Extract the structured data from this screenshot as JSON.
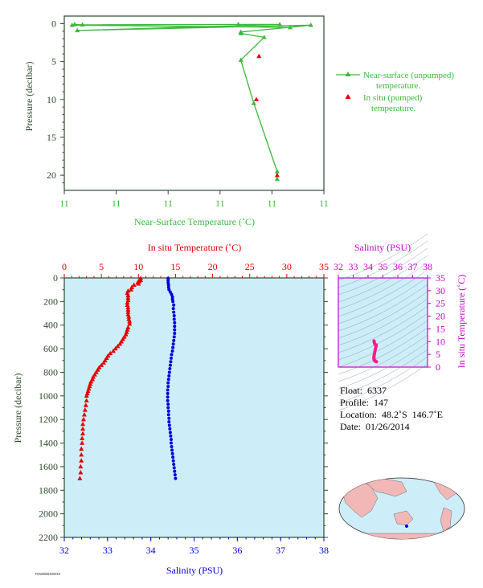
{
  "top_chart": {
    "xlabel": "Near-Surface Temperature (˚C)",
    "ylabel": "Pressure (decibar)",
    "x_tick_labels": [
      "11",
      "11",
      "11",
      "11",
      "11",
      "11"
    ],
    "y_ticks": [
      0,
      5,
      10,
      15,
      20
    ],
    "legend": {
      "unpumped_line1": "Near-surface (unpumped)",
      "unpumped_line2": "temperature.",
      "pumped_line1": "In situ (pumped)",
      "pumped_line2": "temperature."
    },
    "colors": {
      "unpumped": "#3cb83c",
      "pumped": "#e00000",
      "axis": "#2d4a2d"
    }
  },
  "main_chart": {
    "temp_label": "In situ Temperature (˚C)",
    "salinity_label": "Salinity (PSU)",
    "ylabel": "Pressure (decibar)",
    "temp_ticks": [
      0,
      5,
      10,
      15,
      20,
      25,
      30,
      35
    ],
    "salinity_ticks": [
      32,
      33,
      34,
      35,
      36,
      37,
      38
    ],
    "pressure_ticks": [
      0,
      200,
      400,
      600,
      800,
      1000,
      1200,
      1400,
      1600,
      1800,
      2000,
      2200
    ],
    "colors": {
      "temp": "#e00000",
      "salinity": "#0000e0",
      "background": "#cdeef8"
    }
  },
  "ts_chart": {
    "title": "Salinity (PSU)",
    "ylabel": "In situ Temperature (˚C)",
    "x_ticks": [
      32,
      33,
      34,
      35,
      36,
      37,
      38
    ],
    "y_ticks": [
      0,
      5,
      10,
      15,
      20,
      25,
      30,
      35
    ],
    "color": "#cc00cc"
  },
  "info": {
    "float": "Float:  6337",
    "profile": "Profile:  147",
    "location": "Location:  48.2˚S  146.7˚E",
    "date": "Date:  01/26/2014"
  },
  "footer_id": "F0X00000X000X0",
  "chart_data": [
    {
      "type": "line",
      "name": "near-surface",
      "xlabel": "Near-Surface Temperature (˚C)",
      "ylabel": "Pressure (decibar)",
      "ylim": [
        22,
        -1
      ],
      "series": [
        {
          "name": "Near-surface (unpumped) temperature.",
          "points": [
            [
              10.87,
              0.5
            ],
            [
              10.03,
              0.2
            ],
            [
              10.04,
              0.1
            ],
            [
              10.07,
              0.15
            ],
            [
              10.67,
              0.1
            ],
            [
              10.83,
              0.1
            ],
            [
              10.05,
              0.9
            ],
            [
              10.95,
              0.2
            ],
            [
              10.68,
              1.1
            ],
            [
              10.68,
              1.3
            ],
            [
              10.77,
              1.8
            ],
            [
              10.68,
              4.8
            ],
            [
              10.73,
              10.5
            ],
            [
              10.82,
              19.5
            ],
            [
              10.82,
              20.5
            ]
          ]
        },
        {
          "name": "In situ (pumped) temperature.",
          "points": [
            [
              10.75,
              4.3
            ],
            [
              10.74,
              10.0
            ],
            [
              10.82,
              20.0
            ]
          ]
        }
      ]
    },
    {
      "type": "line",
      "name": "temperature-profile",
      "xlabel": "In situ Temperature (˚C)",
      "ylabel": "Pressure (decibar)",
      "xlim": [
        0,
        35
      ],
      "ylim": [
        2200,
        0
      ],
      "series": [
        {
          "name": "In situ Temperature",
          "points": [
            [
              10.3,
              4
            ],
            [
              10.2,
              10
            ],
            [
              10.3,
              20
            ],
            [
              10.1,
              30
            ],
            [
              9.9,
              40
            ],
            [
              10.0,
              50
            ],
            [
              9.4,
              60
            ],
            [
              9.1,
              80
            ],
            [
              9.0,
              100
            ],
            [
              8.6,
              110
            ],
            [
              8.5,
              130
            ],
            [
              8.6,
              150
            ],
            [
              8.6,
              170
            ],
            [
              8.6,
              190
            ],
            [
              8.5,
              210
            ],
            [
              8.5,
              230
            ],
            [
              8.6,
              250
            ],
            [
              8.6,
              270
            ],
            [
              8.6,
              290
            ],
            [
              8.6,
              310
            ],
            [
              8.7,
              330
            ],
            [
              8.7,
              350
            ],
            [
              8.8,
              370
            ],
            [
              8.8,
              390
            ],
            [
              8.6,
              420
            ],
            [
              8.5,
              440
            ],
            [
              8.4,
              460
            ],
            [
              8.3,
              480
            ],
            [
              8.1,
              500
            ],
            [
              7.9,
              520
            ],
            [
              7.7,
              540
            ],
            [
              7.5,
              560
            ],
            [
              7.2,
              580
            ],
            [
              6.9,
              600
            ],
            [
              6.6,
              620
            ],
            [
              6.2,
              640
            ],
            [
              5.9,
              660
            ],
            [
              5.7,
              680
            ],
            [
              5.5,
              700
            ],
            [
              5.3,
              720
            ],
            [
              5.0,
              740
            ],
            [
              4.7,
              760
            ],
            [
              4.5,
              780
            ],
            [
              4.3,
              800
            ],
            [
              4.1,
              820
            ],
            [
              3.9,
              840
            ],
            [
              3.8,
              860
            ],
            [
              3.6,
              880
            ],
            [
              3.5,
              900
            ],
            [
              3.4,
              920
            ],
            [
              3.3,
              940
            ],
            [
              3.2,
              960
            ],
            [
              3.1,
              980
            ],
            [
              3.0,
              1000
            ],
            [
              3.0,
              1040
            ],
            [
              2.9,
              1080
            ],
            [
              2.8,
              1120
            ],
            [
              2.7,
              1160
            ],
            [
              2.6,
              1200
            ],
            [
              2.5,
              1240
            ],
            [
              2.5,
              1280
            ],
            [
              2.5,
              1320
            ],
            [
              2.4,
              1360
            ],
            [
              2.4,
              1400
            ],
            [
              2.3,
              1450
            ],
            [
              2.3,
              1500
            ],
            [
              2.3,
              1550
            ],
            [
              2.2,
              1600
            ],
            [
              2.2,
              1650
            ],
            [
              2.1,
              1700
            ]
          ]
        }
      ]
    },
    {
      "type": "scatter",
      "name": "salinity-profile",
      "xlabel": "Salinity (PSU)",
      "ylabel": "Pressure (decibar)",
      "xlim": [
        32,
        38
      ],
      "ylim": [
        2200,
        0
      ],
      "series": [
        {
          "name": "Salinity",
          "points": [
            [
              34.4,
              4
            ],
            [
              34.4,
              20
            ],
            [
              34.4,
              40
            ],
            [
              34.41,
              60
            ],
            [
              34.41,
              80
            ],
            [
              34.42,
              100
            ],
            [
              34.45,
              120
            ],
            [
              34.48,
              140
            ],
            [
              34.5,
              160
            ],
            [
              34.5,
              180
            ],
            [
              34.51,
              200
            ],
            [
              34.53,
              230
            ],
            [
              34.52,
              260
            ],
            [
              34.53,
              290
            ],
            [
              34.54,
              320
            ],
            [
              34.54,
              350
            ],
            [
              34.55,
              380
            ],
            [
              34.55,
              410
            ],
            [
              34.55,
              440
            ],
            [
              34.55,
              470
            ],
            [
              34.54,
              500
            ],
            [
              34.53,
              530
            ],
            [
              34.52,
              560
            ],
            [
              34.51,
              590
            ],
            [
              34.5,
              620
            ],
            [
              34.48,
              650
            ],
            [
              34.47,
              680
            ],
            [
              34.46,
              710
            ],
            [
              34.45,
              740
            ],
            [
              34.44,
              770
            ],
            [
              34.43,
              800
            ],
            [
              34.42,
              830
            ],
            [
              34.41,
              860
            ],
            [
              34.4,
              890
            ],
            [
              34.4,
              920
            ],
            [
              34.39,
              950
            ],
            [
              34.39,
              980
            ],
            [
              34.39,
              1010
            ],
            [
              34.39,
              1040
            ],
            [
              34.4,
              1070
            ],
            [
              34.4,
              1100
            ],
            [
              34.41,
              1130
            ],
            [
              34.41,
              1160
            ],
            [
              34.42,
              1190
            ],
            [
              34.42,
              1220
            ],
            [
              34.43,
              1250
            ],
            [
              34.44,
              1280
            ],
            [
              34.45,
              1310
            ],
            [
              34.46,
              1340
            ],
            [
              34.47,
              1370
            ],
            [
              34.47,
              1400
            ],
            [
              34.48,
              1430
            ],
            [
              34.49,
              1460
            ],
            [
              34.5,
              1490
            ],
            [
              34.51,
              1520
            ],
            [
              34.52,
              1550
            ],
            [
              34.53,
              1580
            ],
            [
              34.54,
              1610
            ],
            [
              34.55,
              1640
            ],
            [
              34.56,
              1670
            ],
            [
              34.57,
              1700
            ]
          ]
        }
      ]
    },
    {
      "type": "scatter",
      "name": "ts-diagram",
      "xlabel": "Salinity (PSU)",
      "ylabel": "In situ Temperature (˚C)",
      "xlim": [
        32,
        38
      ],
      "ylim": [
        0,
        35
      ],
      "series": [
        {
          "name": "T-S",
          "points": [
            [
              34.4,
              10.3
            ],
            [
              34.41,
              10.0
            ],
            [
              34.42,
              9.6
            ],
            [
              34.45,
              9.1
            ],
            [
              34.5,
              8.8
            ],
            [
              34.52,
              8.6
            ],
            [
              34.53,
              8.6
            ],
            [
              34.55,
              8.7
            ],
            [
              34.55,
              8.5
            ],
            [
              34.54,
              8.2
            ],
            [
              34.52,
              7.8
            ],
            [
              34.5,
              7.3
            ],
            [
              34.48,
              6.8
            ],
            [
              34.46,
              6.2
            ],
            [
              34.44,
              5.7
            ],
            [
              34.43,
              5.2
            ],
            [
              34.41,
              4.8
            ],
            [
              34.4,
              4.3
            ],
            [
              34.39,
              3.9
            ],
            [
              34.39,
              3.6
            ],
            [
              34.39,
              3.3
            ],
            [
              34.4,
              3.0
            ],
            [
              34.41,
              2.9
            ],
            [
              34.42,
              2.7
            ],
            [
              34.44,
              2.6
            ],
            [
              34.46,
              2.5
            ],
            [
              34.48,
              2.4
            ],
            [
              34.5,
              2.3
            ],
            [
              34.53,
              2.2
            ],
            [
              34.57,
              2.1
            ]
          ]
        }
      ]
    }
  ]
}
